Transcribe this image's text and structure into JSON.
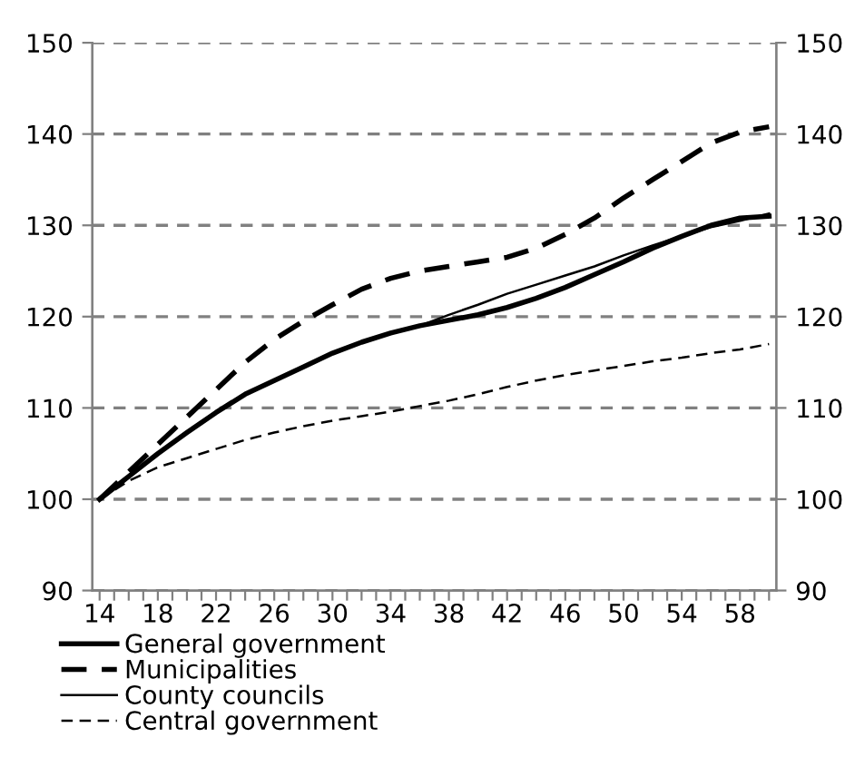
{
  "chart_data": {
    "type": "line",
    "x": [
      14,
      16,
      18,
      20,
      22,
      24,
      26,
      28,
      30,
      32,
      34,
      36,
      38,
      40,
      42,
      44,
      46,
      48,
      50,
      52,
      54,
      56,
      58,
      60
    ],
    "series": [
      {
        "name": "General government",
        "color": "#000000",
        "line_style": "solid",
        "values": [
          100,
          102.5,
          105,
          107.3,
          109.5,
          111.5,
          113,
          114.5,
          116,
          117.2,
          118.2,
          119,
          119.6,
          120.2,
          121,
          122,
          123.2,
          124.6,
          126,
          127.5,
          128.8,
          130,
          130.8,
          131
        ]
      },
      {
        "name": "Municipalities",
        "color": "#000000",
        "line_style": "dashed",
        "values": [
          100,
          103,
          106,
          109,
          112,
          115,
          117.5,
          119.5,
          121.3,
          123,
          124.2,
          125,
          125.5,
          126,
          126.5,
          127.5,
          129,
          130.8,
          133,
          135,
          137,
          139,
          140.2,
          140.8
        ]
      },
      {
        "name": "County councils",
        "color": "#000000",
        "line_style": "solid",
        "values": [
          100,
          102.5,
          105,
          107.3,
          109.5,
          111.5,
          113,
          114.5,
          116,
          117.2,
          118.2,
          119,
          120.2,
          121.3,
          122.5,
          123.5,
          124.5,
          125.5,
          126.7,
          127.8,
          128.8,
          129.8,
          130.5,
          131.3
        ]
      },
      {
        "name": "Central government",
        "color": "#000000",
        "line_style": "dashed",
        "values": [
          100,
          102,
          103.5,
          104.5,
          105.5,
          106.5,
          107.3,
          108,
          108.6,
          109.1,
          109.6,
          110.2,
          110.8,
          111.5,
          112.3,
          113,
          113.6,
          114.1,
          114.6,
          115.1,
          115.5,
          116,
          116.4,
          117
        ]
      }
    ],
    "xlim": [
      13.5,
      60.5
    ],
    "xticks": [
      14,
      {
        "value": 15,
        "label": null
      },
      {
        "value": 16,
        "label": null
      },
      {
        "value": 17,
        "label": null
      },
      18,
      {
        "value": 19,
        "label": null
      },
      {
        "value": 20,
        "label": null
      },
      {
        "value": 21,
        "label": null
      },
      22,
      {
        "value": 23,
        "label": null
      },
      {
        "value": 24,
        "label": null
      },
      {
        "value": 25,
        "label": null
      },
      26,
      {
        "value": 27,
        "label": null
      },
      {
        "value": 28,
        "label": null
      },
      {
        "value": 29,
        "label": null
      },
      30,
      {
        "value": 31,
        "label": null
      },
      {
        "value": 32,
        "label": null
      },
      {
        "value": 33,
        "label": null
      },
      34,
      {
        "value": 35,
        "label": null
      },
      {
        "value": 36,
        "label": null
      },
      {
        "value": 37,
        "label": null
      },
      38,
      {
        "value": 39,
        "label": null
      },
      {
        "value": 40,
        "label": null
      },
      {
        "value": 41,
        "label": null
      },
      42,
      {
        "value": 43,
        "label": null
      },
      {
        "value": 44,
        "label": null
      },
      {
        "value": 45,
        "label": null
      },
      46,
      {
        "value": 47,
        "label": null
      },
      {
        "value": 48,
        "label": null
      },
      {
        "value": 49,
        "label": null
      },
      50,
      {
        "value": 51,
        "label": null
      },
      {
        "value": 52,
        "label": null
      },
      {
        "value": 53,
        "label": null
      },
      54,
      {
        "value": 55,
        "label": null
      },
      {
        "value": 56,
        "label": null
      },
      {
        "value": 57,
        "label": null
      },
      58,
      {
        "value": 59,
        "label": null
      },
      {
        "value": 60,
        "label": null
      }
    ],
    "ylim": [
      90,
      150
    ],
    "yticks": [
      90,
      100,
      110,
      120,
      130,
      140,
      150
    ],
    "y2lim": [
      90,
      150
    ],
    "y2ticks": [
      90,
      100,
      110,
      120,
      130,
      140,
      150
    ],
    "grid": "y",
    "legend": "bottom left"
  }
}
